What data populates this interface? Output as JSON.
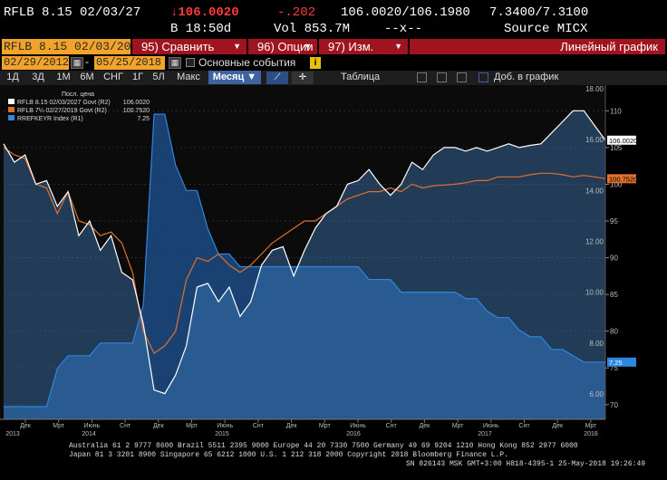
{
  "quote": {
    "ticker": "RFLB 8.15 02/03/27",
    "last_price": "↓106.0020",
    "change": "-.202",
    "bid_ask": "106.0020/106.1980",
    "yield": "7.3400/7.3100",
    "time": "B 18:50d",
    "volume": "Vol 853.7M",
    "dashes": "--x--",
    "source": "Source MICX"
  },
  "toolbar": {
    "security": "RFLB 8.15 02/03/20",
    "compare_label": "95) Сравнить",
    "options_label": "96) Опции",
    "edit_label": "97) Изм.",
    "chart_type": "Линейный график"
  },
  "range": {
    "start_date": "02/29/2012",
    "end_date": "05/25/2018",
    "calendar_icon": "calendar-icon",
    "events_label": "Основные события",
    "info_badge": "i"
  },
  "periods": {
    "items": [
      "1Д",
      "3Д",
      "1М",
      "6М",
      "СНГ",
      "1Г",
      "5Л",
      "Макс"
    ],
    "interval": "Месяц ▼",
    "table_label": "Таблица",
    "add_label": "Доб. в график"
  },
  "legend": {
    "header": "Посл. цена",
    "entries": [
      {
        "label": "RFLB 8.15 02/03/2027 Govt  (R2)",
        "value": "106.0020",
        "color": "#ffffff"
      },
      {
        "label": "RFLB 7¼ 02/27/2019 Govt  (R2)",
        "value": "100.7520",
        "color": "#e0702a"
      },
      {
        "label": "RREFKEYR Index  (R1)",
        "value": "7.25",
        "color": "#2e86de"
      }
    ]
  },
  "chart_data": {
    "type": "line",
    "x_labels": [
      "Дек",
      "Мрт",
      "Июнь",
      "Снт",
      "Дек",
      "Мрт",
      "Июнь",
      "Снт",
      "Дек",
      "Мрт",
      "Июнь",
      "Снт",
      "Дек",
      "Мрт",
      "Июнь",
      "Снт",
      "Дек",
      "Мрт"
    ],
    "year_labels": [
      "2013",
      "2014",
      "2015",
      "2016",
      "2017",
      "2018"
    ],
    "right_axis_r2": {
      "ticks": [
        70,
        75,
        80,
        85,
        90,
        95,
        100,
        105,
        110
      ],
      "range": [
        68,
        113
      ]
    },
    "left_axis_r1": {
      "ticks": [
        "6.00",
        "8.00",
        "10.00",
        "12.00",
        "14.00",
        "16.00",
        "18.00"
      ],
      "range": [
        5,
        18
      ]
    },
    "last_values": {
      "rflb27": "106.0020",
      "rflb19": "100.7520",
      "keyrate": "7.25"
    },
    "series": [
      {
        "name": "RFLB 8.15 02/03/2027 Govt",
        "axis": "R2",
        "values": [
          105.5,
          103.0,
          104.0,
          100.0,
          100.5,
          97.0,
          99.0,
          93.0,
          95.0,
          91.0,
          93.0,
          88.0,
          87.0,
          81.0,
          72.0,
          71.5,
          74.0,
          78.0,
          86.0,
          86.5,
          84.0,
          86.0,
          82.0,
          84.0,
          89.0,
          91.0,
          91.5,
          87.5,
          91.0,
          94.0,
          96.0,
          97.0,
          100.0,
          100.5,
          102.0,
          100.0,
          98.5,
          100.0,
          103.0,
          102.0,
          104.0,
          105.0,
          105.0,
          104.5,
          105.0,
          104.5,
          105.0,
          105.5,
          105.0,
          105.3,
          105.5,
          107.0,
          108.5,
          110.0,
          110.0,
          108.0,
          106.0
        ]
      },
      {
        "name": "RFLB 7¼ 02/27/2019 Govt",
        "axis": "R2",
        "values": [
          105.0,
          104.0,
          103.5,
          100.0,
          99.5,
          96.0,
          99.0,
          95.0,
          94.5,
          93.0,
          93.5,
          92.0,
          88.0,
          80.0,
          77.0,
          78.0,
          80.0,
          87.0,
          90.0,
          89.5,
          90.5,
          89.0,
          88.0,
          89.0,
          90.5,
          92.0,
          93.0,
          94.0,
          95.0,
          95.0,
          96.0,
          97.0,
          98.0,
          98.5,
          99.0,
          99.0,
          99.5,
          99.0,
          100.0,
          99.5,
          99.8,
          99.9,
          100.0,
          100.2,
          100.5,
          100.5,
          101.0,
          101.0,
          101.0,
          101.3,
          101.5,
          101.5,
          101.3,
          101.0,
          101.2,
          101.0,
          100.752
        ]
      },
      {
        "name": "RREFKEYR Index",
        "axis": "R1",
        "values": [
          5.5,
          5.5,
          5.5,
          5.5,
          5.5,
          7.0,
          7.5,
          7.5,
          7.5,
          8.0,
          8.0,
          8.0,
          8.0,
          9.5,
          17.0,
          17.0,
          15.0,
          14.0,
          14.0,
          12.5,
          11.5,
          11.5,
          11.0,
          11.0,
          11.0,
          11.0,
          11.0,
          11.0,
          11.0,
          11.0,
          11.0,
          11.0,
          11.0,
          11.0,
          10.5,
          10.5,
          10.5,
          10.0,
          10.0,
          10.0,
          10.0,
          10.0,
          10.0,
          9.75,
          9.75,
          9.25,
          9.0,
          9.0,
          8.5,
          8.25,
          8.25,
          7.75,
          7.75,
          7.5,
          7.25,
          7.25,
          7.25
        ]
      }
    ]
  },
  "footer": {
    "line1": "Australia 61 2 9777 8600 Brazil 5511 2395 9000 Europe 44 20 7330 7500 Germany 49 69 9204 1210 Hong Kong 852 2977 6000",
    "line2": "Japan 81 3 3201 8900         Singapore 65 6212 1000          U.S. 1 212 318 2000           Copyright 2018 Bloomberg Finance L.P.",
    "line3": "SN 826143 MSK  GMT+3:00 H818-4395-1 25-May-2018 19:26:49"
  }
}
